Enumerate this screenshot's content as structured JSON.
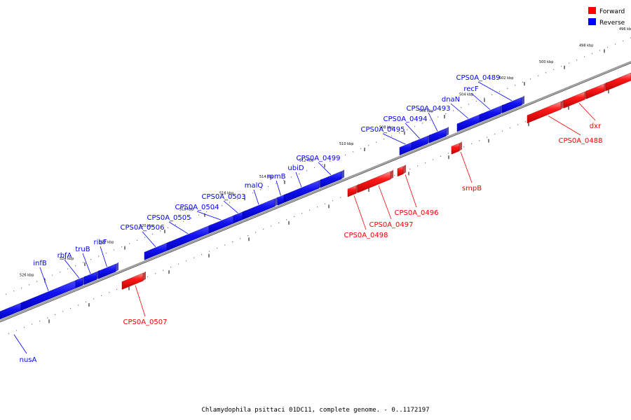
{
  "caption": "Chlamydophila psittaci 01DC11, complete genome. - 0..1172197",
  "legend": [
    {
      "label": "Forward",
      "color": "#ff0000"
    },
    {
      "label": "Reverse",
      "color": "#0000ff"
    }
  ],
  "colors": {
    "forward": "#ff0000",
    "reverse": "#0000ff",
    "backbone": "#888888"
  },
  "kbp_ticks": [
    {
      "kbp": 496,
      "label": "496 kbp"
    },
    {
      "kbp": 498,
      "label": "498 kbp"
    },
    {
      "kbp": 500,
      "label": "500 kbp"
    },
    {
      "kbp": 502,
      "label": "502 kbp"
    },
    {
      "kbp": 504,
      "label": "504 kbp"
    },
    {
      "kbp": 506,
      "label": "506 kbp"
    },
    {
      "kbp": 508,
      "label": "508 kbp"
    },
    {
      "kbp": 510,
      "label": "510 kbp"
    },
    {
      "kbp": 512,
      "label": "512 kbp"
    },
    {
      "kbp": 514,
      "label": "514 kbp"
    },
    {
      "kbp": 516,
      "label": "516 kbp"
    },
    {
      "kbp": 518,
      "label": "518 kbp"
    },
    {
      "kbp": 520,
      "label": "520 kbp"
    },
    {
      "kbp": 522,
      "label": "522 kbp"
    },
    {
      "kbp": 524,
      "label": "524 kbp"
    },
    {
      "kbp": 526,
      "label": "526 kbp"
    }
  ],
  "reverse_genes": [
    {
      "name": "nusA"
    },
    {
      "name": "infB"
    },
    {
      "name": "rbfA"
    },
    {
      "name": "truB"
    },
    {
      "name": "ribF"
    },
    {
      "name": "CPS0A_0506"
    },
    {
      "name": "CPS0A_0505"
    },
    {
      "name": "CPS0A_0504"
    },
    {
      "name": "CPS0A_0503"
    },
    {
      "name": "malQ"
    },
    {
      "name": "rpmB"
    },
    {
      "name": "ubiD"
    },
    {
      "name": "CPS0A_0499"
    },
    {
      "name": "CPS0A_0495"
    },
    {
      "name": "CPS0A_0494"
    },
    {
      "name": "CPS0A_0493"
    },
    {
      "name": "dnaN"
    },
    {
      "name": "recF"
    },
    {
      "name": "CPS0A_0489"
    }
  ],
  "forward_genes": [
    {
      "name": "CPS0A_0507"
    },
    {
      "name": "CPS0A_0498"
    },
    {
      "name": "CPS0A_0497"
    },
    {
      "name": "CPS0A_0496"
    },
    {
      "name": "smpB"
    },
    {
      "name": "CPS0A_0488"
    },
    {
      "name": "dxr"
    }
  ]
}
